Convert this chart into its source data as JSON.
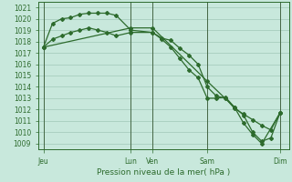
{
  "title": "Pression niveau de la mer( hPa )",
  "bg_color": "#c8e8dc",
  "grid_color": "#a0c8b8",
  "line_color": "#2d6b2d",
  "tick_color": "#2d6b2d",
  "ylim": [
    1008.5,
    1021.5
  ],
  "yticks": [
    1009,
    1010,
    1011,
    1012,
    1013,
    1014,
    1015,
    1016,
    1017,
    1018,
    1019,
    1020,
    1021
  ],
  "xtick_labels": [
    "Jeu",
    "Lun",
    "Ven",
    "Sam",
    "Dim"
  ],
  "xtick_positions": [
    0,
    4.8,
    6.0,
    9.0,
    13.0
  ],
  "xlim": [
    -0.3,
    13.5
  ],
  "series1_x": [
    0,
    0.5,
    1.0,
    1.5,
    2.0,
    2.5,
    3.0,
    3.5,
    4.0,
    4.8,
    6.0,
    6.5,
    7.0,
    7.5,
    8.0,
    8.5,
    9.0,
    9.5,
    10.0,
    10.5,
    11.0,
    11.5,
    12.0,
    12.5,
    13.0
  ],
  "series1_y": [
    1017.5,
    1019.6,
    1020.0,
    1020.1,
    1020.4,
    1020.5,
    1020.5,
    1020.5,
    1020.3,
    1019.0,
    1018.8,
    1018.3,
    1018.1,
    1017.4,
    1016.8,
    1016.0,
    1014.0,
    1013.2,
    1013.0,
    1012.1,
    1011.6,
    1011.1,
    1010.6,
    1010.2,
    1011.7
  ],
  "series2_x": [
    0,
    0.5,
    1.0,
    1.5,
    2.0,
    2.5,
    3.0,
    3.5,
    4.0,
    4.8,
    6.0,
    6.5,
    7.0,
    7.5,
    8.0,
    8.5,
    9.0,
    9.5,
    10.0,
    10.5,
    11.0,
    11.5,
    12.0,
    12.5,
    13.0
  ],
  "series2_y": [
    1017.5,
    1018.2,
    1018.5,
    1018.8,
    1019.0,
    1019.2,
    1019.0,
    1018.8,
    1018.5,
    1018.8,
    1018.8,
    1018.2,
    1017.5,
    1016.5,
    1015.5,
    1014.8,
    1013.0,
    1013.0,
    1013.1,
    1012.2,
    1011.5,
    1010.0,
    1009.2,
    1009.5,
    1011.7
  ],
  "series3_x": [
    0,
    4.8,
    6.0,
    9.0,
    10.5,
    11.0,
    11.5,
    12.0,
    13.0
  ],
  "series3_y": [
    1017.5,
    1019.2,
    1019.2,
    1014.5,
    1012.2,
    1010.8,
    1009.8,
    1009.0,
    1011.7
  ],
  "vline_x": [
    0,
    4.8,
    6.0,
    9.0,
    13.0
  ],
  "marker": "D",
  "markersize": 2.0,
  "linewidth": 0.9,
  "title_fontsize": 6.5,
  "tick_fontsize": 5.5
}
